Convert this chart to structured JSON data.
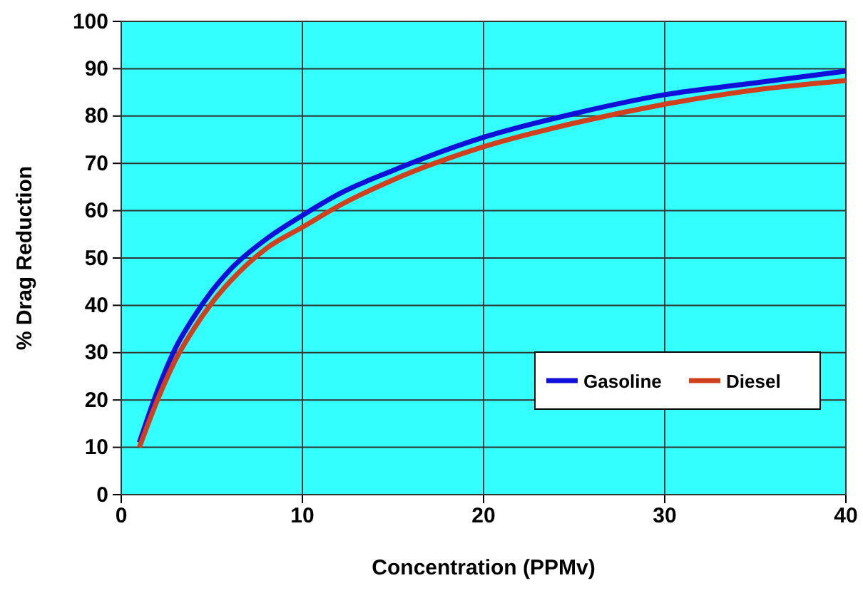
{
  "chart_data": {
    "type": "line",
    "xlabel": "Concentration (PPMv)",
    "ylabel": "% Drag Reduction",
    "xlim": [
      0,
      40
    ],
    "xticks": [
      0,
      10,
      20,
      30,
      40
    ],
    "ylim": [
      0,
      100
    ],
    "yticks": [
      0,
      10,
      20,
      30,
      40,
      50,
      60,
      70,
      80,
      90,
      100
    ],
    "grid": true,
    "legend": "bottom right",
    "marker": "none",
    "line_style": "solid",
    "series": [
      {
        "name": "Gasoline",
        "color": "#1010d8",
        "x": [
          1,
          2,
          3,
          4,
          5,
          6,
          8,
          10,
          12,
          15,
          20,
          25,
          30,
          35,
          40
        ],
        "values": [
          11,
          22,
          31,
          37.5,
          43,
          47.5,
          54,
          59,
          63.5,
          68.5,
          75.5,
          80.5,
          84.5,
          87,
          89.5
        ]
      },
      {
        "name": "Diesel",
        "color": "#d0401c",
        "x": [
          1,
          2,
          3,
          4,
          5,
          6,
          8,
          10,
          12,
          15,
          20,
          25,
          30,
          35,
          40
        ],
        "values": [
          10,
          20,
          28.5,
          35,
          40.5,
          45,
          52,
          56.5,
          61,
          66.5,
          73.5,
          78.5,
          82.5,
          85.5,
          87.5
        ]
      }
    ]
  }
}
